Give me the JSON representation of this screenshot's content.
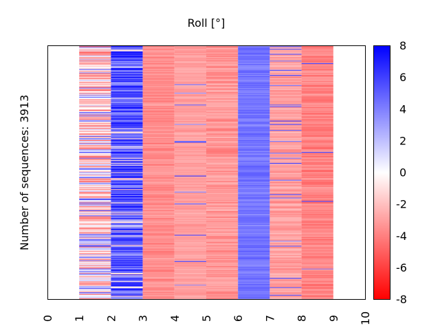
{
  "chart_data": {
    "type": "heatmap",
    "title": "Roll [°]",
    "xlabel": "",
    "ylabel": "Number of sequences: 3913",
    "x_ticks": [
      "0",
      "1",
      "2",
      "3",
      "4",
      "5",
      "6",
      "7",
      "8",
      "9",
      "10"
    ],
    "xlim": [
      0,
      10
    ],
    "num_sequences": 3913,
    "colorbar": {
      "min": -8,
      "max": 8,
      "ticks": [
        "8",
        "6",
        "4",
        "2",
        "0",
        "-2",
        "-4",
        "-6",
        "-8"
      ],
      "colormap": "bwr",
      "low_color": "#ff0000",
      "mid_color": "#ffffff",
      "high_color": "#0000ff"
    },
    "columns": [
      {
        "x_start": 1,
        "x_end": 2,
        "mean": -1.5,
        "spread": 3.5,
        "blue_frac": 0.12
      },
      {
        "x_start": 2,
        "x_end": 3,
        "mean": 5.5,
        "spread": 2.5,
        "blue_frac": 0.9
      },
      {
        "x_start": 3,
        "x_end": 4,
        "mean": -3.6,
        "spread": 0.8,
        "blue_frac": 0.0
      },
      {
        "x_start": 4,
        "x_end": 5,
        "mean": -3.0,
        "spread": 0.6,
        "blue_frac": 0.06
      },
      {
        "x_start": 5,
        "x_end": 6,
        "mean": -3.3,
        "spread": 1.0,
        "blue_frac": 0.0
      },
      {
        "x_start": 6,
        "x_end": 7,
        "mean": 4.3,
        "spread": 0.8,
        "blue_frac": 1.0
      },
      {
        "x_start": 7,
        "x_end": 8,
        "mean": -3.0,
        "spread": 0.9,
        "blue_frac": 0.07
      },
      {
        "x_start": 8,
        "x_end": 9,
        "mean": -3.9,
        "spread": 1.0,
        "blue_frac": 0.02
      }
    ]
  }
}
